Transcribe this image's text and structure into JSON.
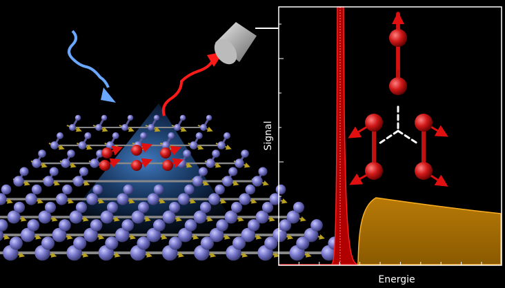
{
  "plot": {
    "y_label": "Signal",
    "x_label": "Energie"
  }
}
